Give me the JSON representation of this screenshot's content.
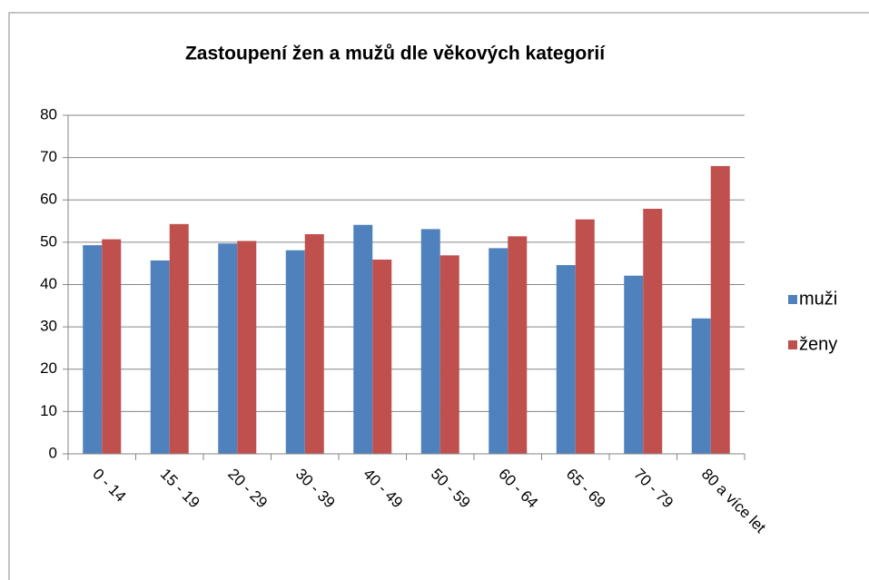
{
  "chart_data": {
    "type": "bar",
    "title": "Zastoupení žen a mužů dle věkových kategorií",
    "categories": [
      "0 - 14",
      "15 - 19",
      "20 - 29",
      "30 - 39",
      "40 - 49",
      "50 - 59",
      "60 - 64",
      "65 - 69",
      "70 - 79",
      "80 a více let"
    ],
    "series": [
      {
        "name": "muži",
        "color": "#4f81bd",
        "values": [
          49.3,
          45.7,
          49.7,
          48.1,
          54.1,
          53.1,
          48.6,
          44.6,
          42.1,
          32
        ]
      },
      {
        "name": "ženy",
        "color": "#c0504d",
        "values": [
          50.7,
          54.3,
          50.3,
          51.9,
          45.9,
          46.9,
          51.4,
          55.4,
          57.9,
          68
        ]
      }
    ],
    "ylim": [
      0,
      80
    ],
    "yticks": [
      0,
      10,
      20,
      30,
      40,
      50,
      60,
      70,
      80
    ],
    "grid": true,
    "legend": "right"
  }
}
